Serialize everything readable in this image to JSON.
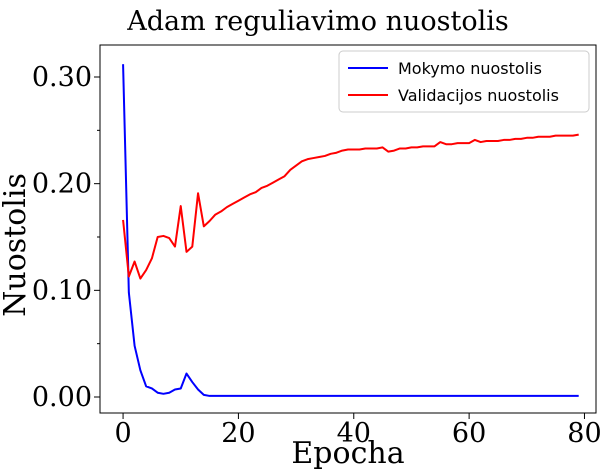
{
  "chart_data": {
    "type": "line",
    "title": "Adam reguliavimo nuostolis",
    "xlabel": "Epocha",
    "ylabel": "Nuostolis",
    "xlim": [
      -4,
      82
    ],
    "ylim": [
      -0.015,
      0.33
    ],
    "x_ticks": [
      0,
      20,
      40,
      60,
      80
    ],
    "x_tick_labels": [
      "0",
      "20",
      "40",
      "60",
      "80"
    ],
    "y_ticks": [
      0.0,
      0.1,
      0.2,
      0.3
    ],
    "y_tick_labels": [
      "0.00",
      "0.10",
      "0.20",
      "0.30"
    ],
    "y_minor_ticks": [
      0.05,
      0.15,
      0.25
    ],
    "grid": false,
    "legend_position": "top-right",
    "series": [
      {
        "name": "Mokymo nuostolis",
        "color": "#0000ff",
        "x": [
          0,
          1,
          2,
          3,
          4,
          5,
          6,
          7,
          8,
          9,
          10,
          11,
          12,
          13,
          14,
          15,
          16,
          17,
          18,
          19,
          20,
          21,
          22,
          23,
          24,
          25,
          26,
          27,
          28,
          29,
          30,
          31,
          32,
          33,
          34,
          35,
          36,
          37,
          38,
          39,
          40,
          41,
          42,
          43,
          44,
          45,
          46,
          47,
          48,
          49,
          50,
          51,
          52,
          53,
          54,
          55,
          56,
          57,
          58,
          59,
          60,
          61,
          62,
          63,
          64,
          65,
          66,
          67,
          68,
          69,
          70,
          71,
          72,
          73,
          74,
          75,
          76,
          77,
          78,
          79
        ],
        "y": [
          0.312,
          0.098,
          0.048,
          0.025,
          0.01,
          0.008,
          0.004,
          0.003,
          0.004,
          0.007,
          0.008,
          0.022,
          0.014,
          0.007,
          0.002,
          0.001,
          0.001,
          0.001,
          0.001,
          0.001,
          0.001,
          0.001,
          0.001,
          0.001,
          0.001,
          0.001,
          0.001,
          0.001,
          0.001,
          0.001,
          0.001,
          0.001,
          0.001,
          0.001,
          0.001,
          0.001,
          0.001,
          0.001,
          0.001,
          0.001,
          0.001,
          0.001,
          0.001,
          0.001,
          0.001,
          0.001,
          0.001,
          0.001,
          0.001,
          0.001,
          0.001,
          0.001,
          0.001,
          0.001,
          0.001,
          0.001,
          0.001,
          0.001,
          0.001,
          0.001,
          0.001,
          0.001,
          0.001,
          0.001,
          0.001,
          0.001,
          0.001,
          0.001,
          0.001,
          0.001,
          0.001,
          0.001,
          0.001,
          0.001,
          0.001,
          0.001,
          0.001,
          0.001,
          0.001,
          0.001
        ]
      },
      {
        "name": "Validacijos nuostolis",
        "color": "#ff0000",
        "x": [
          0,
          1,
          2,
          3,
          4,
          5,
          6,
          7,
          8,
          9,
          10,
          11,
          12,
          13,
          14,
          15,
          16,
          17,
          18,
          19,
          20,
          21,
          22,
          23,
          24,
          25,
          26,
          27,
          28,
          29,
          30,
          31,
          32,
          33,
          34,
          35,
          36,
          37,
          38,
          39,
          40,
          41,
          42,
          43,
          44,
          45,
          46,
          47,
          48,
          49,
          50,
          51,
          52,
          53,
          54,
          55,
          56,
          57,
          58,
          59,
          60,
          61,
          62,
          63,
          64,
          65,
          66,
          67,
          68,
          69,
          70,
          71,
          72,
          73,
          74,
          75,
          76,
          77,
          78,
          79
        ],
        "y": [
          0.166,
          0.113,
          0.127,
          0.111,
          0.119,
          0.13,
          0.15,
          0.151,
          0.149,
          0.141,
          0.179,
          0.136,
          0.141,
          0.191,
          0.16,
          0.165,
          0.171,
          0.174,
          0.178,
          0.181,
          0.184,
          0.187,
          0.19,
          0.192,
          0.196,
          0.198,
          0.201,
          0.204,
          0.207,
          0.213,
          0.217,
          0.221,
          0.223,
          0.224,
          0.225,
          0.226,
          0.228,
          0.229,
          0.231,
          0.232,
          0.232,
          0.232,
          0.233,
          0.233,
          0.233,
          0.234,
          0.23,
          0.231,
          0.233,
          0.233,
          0.234,
          0.234,
          0.235,
          0.235,
          0.235,
          0.239,
          0.237,
          0.237,
          0.238,
          0.238,
          0.238,
          0.241,
          0.239,
          0.24,
          0.24,
          0.24,
          0.241,
          0.241,
          0.242,
          0.242,
          0.243,
          0.243,
          0.244,
          0.244,
          0.244,
          0.245,
          0.245,
          0.245,
          0.245,
          0.246
        ]
      }
    ]
  }
}
